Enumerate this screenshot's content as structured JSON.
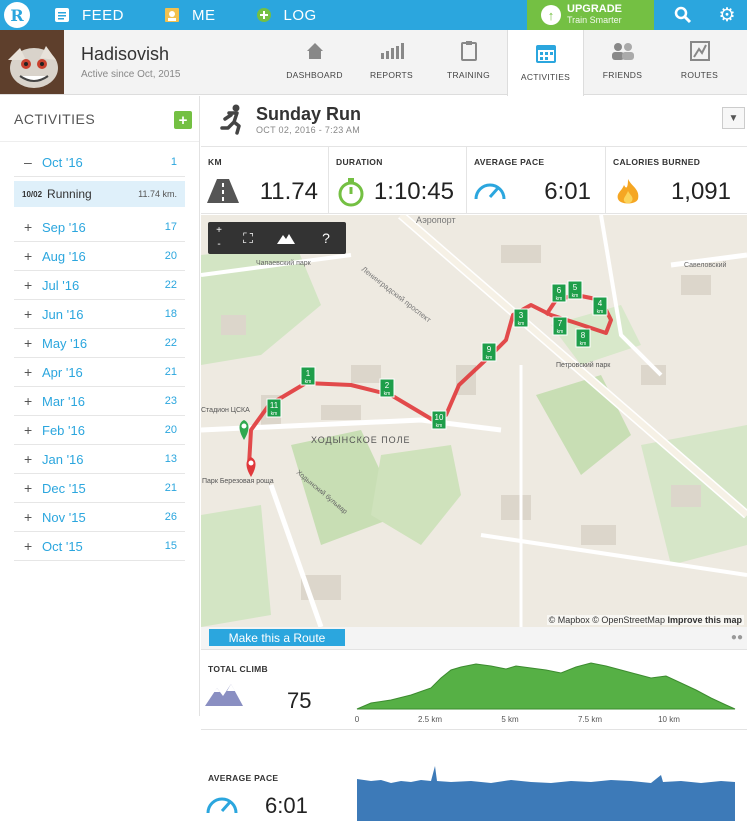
{
  "topnav": {
    "items": [
      {
        "label": "FEED",
        "icon": "feed-icon"
      },
      {
        "label": "ME",
        "icon": "me-icon"
      },
      {
        "label": "LOG",
        "icon": "log-icon"
      }
    ],
    "upgrade": {
      "title": "UPGRADE",
      "subtitle": "Train Smarter"
    }
  },
  "profile": {
    "name": "Hadisovish",
    "since": "Active since Oct, 2015"
  },
  "tabs": [
    {
      "label": "DASHBOARD",
      "icon": "home-icon"
    },
    {
      "label": "REPORTS",
      "icon": "bar-chart-icon"
    },
    {
      "label": "TRAINING",
      "icon": "clipboard-icon"
    },
    {
      "label": "ACTIVITIES",
      "icon": "calendar-icon",
      "active": true
    },
    {
      "label": "FRIENDS",
      "icon": "friends-icon"
    },
    {
      "label": "ROUTES",
      "icon": "routes-icon"
    }
  ],
  "sidebar": {
    "title": "ACTIVITIES",
    "add_label": "+",
    "current_month": {
      "label": "Oct '16",
      "count": "1",
      "sign": "–"
    },
    "selected_activity": {
      "date": "10/02",
      "name": "Running",
      "distance": "11.74 km."
    },
    "months": [
      {
        "label": "Sep '16",
        "count": "17"
      },
      {
        "label": "Aug '16",
        "count": "20"
      },
      {
        "label": "Jul '16",
        "count": "22"
      },
      {
        "label": "Jun '16",
        "count": "18"
      },
      {
        "label": "May '16",
        "count": "22"
      },
      {
        "label": "Apr '16",
        "count": "21"
      },
      {
        "label": "Mar '16",
        "count": "23"
      },
      {
        "label": "Feb '16",
        "count": "20"
      },
      {
        "label": "Jan '16",
        "count": "13"
      },
      {
        "label": "Dec '15",
        "count": "21"
      },
      {
        "label": "Nov '15",
        "count": "26"
      },
      {
        "label": "Oct '15",
        "count": "15"
      }
    ]
  },
  "activity": {
    "title": "Sunday Run",
    "date": "OCT 02, 2016  -  7:23 AM"
  },
  "stats": [
    {
      "label": "KM",
      "value": "11.74",
      "icon": "road-icon"
    },
    {
      "label": "DURATION",
      "value": "1:10:45",
      "icon": "stopwatch-icon"
    },
    {
      "label": "AVERAGE PACE",
      "value": "6:01",
      "icon": "speedometer-icon"
    },
    {
      "label": "CALORIES BURNED",
      "value": "1,091",
      "icon": "flame-icon"
    }
  ],
  "map": {
    "controls": {
      "zoom_in": "+",
      "zoom_out": "-",
      "help": "?"
    },
    "attribution": "© Mapbox © OpenStreetMap",
    "improve": "Improve this map",
    "labels": {
      "airport": "Аэропорт",
      "chapaev": "Чапаевский парк",
      "prospect": "Ленинградский проспект",
      "stadium": "Стадион ЦСКА",
      "khodynka": "ХОДЫНСКОЕ ПОЛЕ",
      "petrovsky": "Петровский парк",
      "bulvar": "Ходынский бульвар",
      "park": "Парк Березовая роща",
      "savelovsky": "Савеловский"
    },
    "km_markers": [
      "1",
      "2",
      "3",
      "4",
      "5",
      "6",
      "7",
      "8",
      "9",
      "10",
      "11"
    ]
  },
  "route_button": "Make this a Route",
  "climb": {
    "label": "TOTAL CLIMB",
    "value": "75",
    "axis": [
      "0",
      "2.5 km",
      "5 km",
      "7.5 km",
      "10 km"
    ]
  },
  "pace": {
    "label": "AVERAGE PACE",
    "value": "6:01"
  },
  "colors": {
    "brand_blue": "#2ba6de",
    "upgrade_green": "#74c043",
    "route_red": "#e0383b",
    "climb_green": "#56b045",
    "pace_blue": "#3d7ab8"
  }
}
